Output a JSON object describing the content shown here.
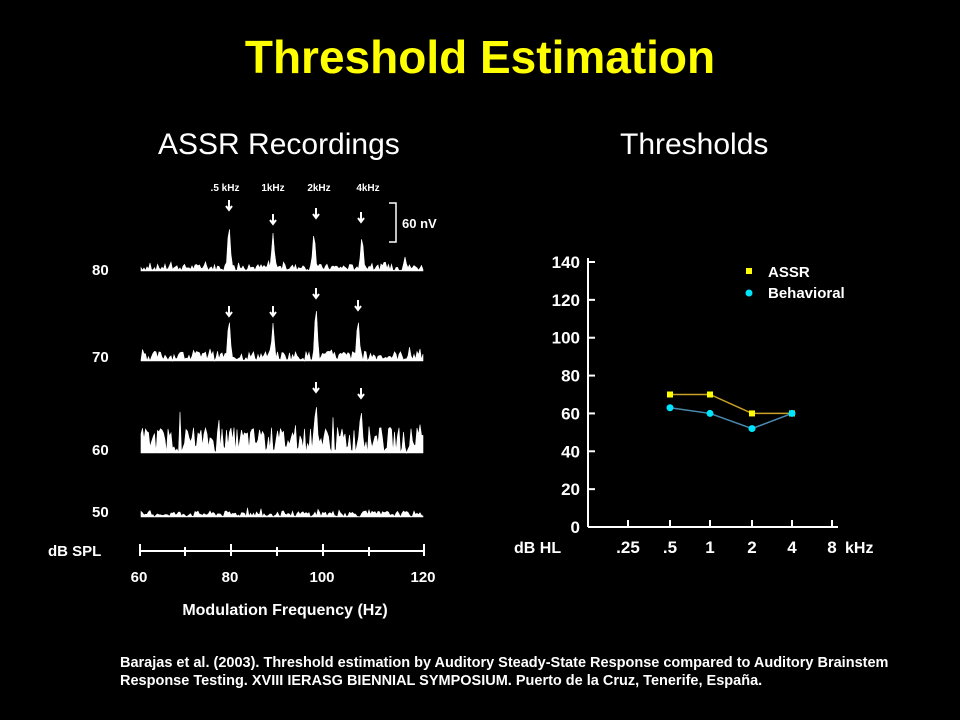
{
  "title": "Threshold Estimation",
  "panels": {
    "left_title": "ASSR Recordings",
    "right_title": "Thresholds"
  },
  "assr": {
    "freq_labels": [
      ".5 kHz",
      "1kHz",
      "2kHz",
      "4kHz"
    ],
    "scale_bar_label": "60 nV",
    "level_labels": [
      "80",
      "70",
      "60",
      "50"
    ],
    "level_unit": "dB SPL",
    "x_ticks": [
      "60",
      "80",
      "100",
      "120"
    ],
    "xlabel": "Modulation Frequency (Hz)"
  },
  "chart_data": {
    "type": "line",
    "x": [
      ".25",
      ".5",
      "1",
      "2",
      "4",
      "8"
    ],
    "x_unit": "kHz",
    "ylabel": "dB HL",
    "ylim": [
      0,
      140
    ],
    "y_ticks": [
      "0",
      "20",
      "40",
      "60",
      "80",
      "100",
      "120",
      "140"
    ],
    "legend_position": "top-right",
    "series": [
      {
        "name": "ASSR",
        "color": "#ffff00",
        "points": [
          [
            ".5",
            70
          ],
          [
            "1",
            70
          ],
          [
            "2",
            60
          ],
          [
            "4",
            60
          ]
        ]
      },
      {
        "name": "Behavioral",
        "color": "#00e5ff",
        "points": [
          [
            ".5",
            63
          ],
          [
            "1",
            60
          ],
          [
            "2",
            52
          ],
          [
            "4",
            60
          ]
        ]
      }
    ]
  },
  "citation": "Barajas et al. (2003). Threshold estimation by Auditory Steady-State Response compared to Auditory Brainstem Response Testing. XVIII IERASG BIENNIAL SYMPOSIUM. Puerto de la Cruz, Tenerife, España."
}
